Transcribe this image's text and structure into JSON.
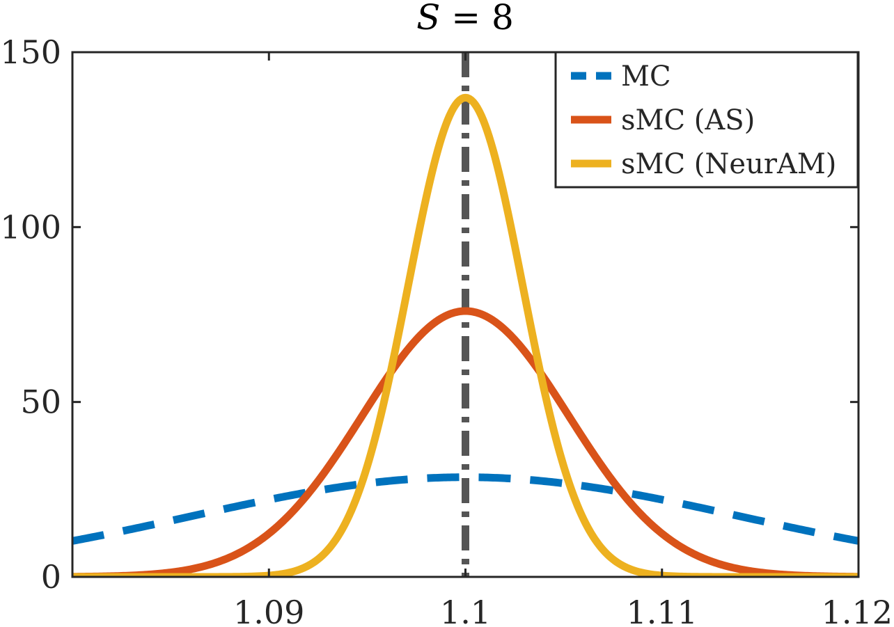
{
  "chart_data": {
    "type": "line",
    "title": "S = 8",
    "title_var": "S",
    "title_rest": " = 8",
    "xlabel": "",
    "ylabel": "",
    "xlim": [
      1.08,
      1.12
    ],
    "ylim": [
      0,
      150
    ],
    "x_ticks": [
      1.09,
      1.1,
      1.11,
      1.12
    ],
    "x_tick_labels": [
      "1.09",
      "1.1",
      "1.11",
      "1.12"
    ],
    "y_ticks": [
      0,
      50,
      100,
      150
    ],
    "y_tick_labels": [
      "0",
      "50",
      "100",
      "150"
    ],
    "grid": false,
    "legend_position": "top-right",
    "reference_line": {
      "x": 1.1,
      "color": "#555555",
      "style": "dash-dot"
    },
    "series": [
      {
        "name": "MC",
        "color": "#0072BD",
        "style": "dashed",
        "distribution": "normal",
        "mean": 1.1,
        "std": 0.014,
        "peak": 28.5
      },
      {
        "name": "sMC (AS)",
        "color": "#D95319",
        "style": "solid",
        "distribution": "normal",
        "mean": 1.1,
        "std": 0.00525,
        "peak": 76
      },
      {
        "name": "sMC (NeurAM)",
        "color": "#EDB120",
        "style": "solid",
        "distribution": "normal",
        "mean": 1.1,
        "std": 0.00292,
        "peak": 137
      }
    ]
  }
}
